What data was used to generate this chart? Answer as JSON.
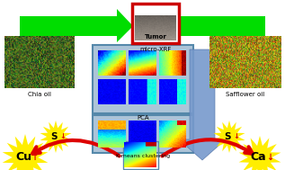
{
  "bg_color": "#ffffff",
  "tumor_box_color": "#cc0000",
  "tumor_label": "Tumor",
  "micro_xrf_label": "micro-XRF",
  "pca_label": "PCA",
  "kmeans_label": "K-means clustering",
  "chia_label": "Chia oil",
  "safflower_label": "Safflower oil",
  "cu_label": "Cu",
  "s_left_label": "S",
  "s_right_label": "S",
  "ca_label": "Ca",
  "green_arrow_color": "#00dd00",
  "blue_arrow_color": "#7799cc",
  "red_arrow_color": "#dd0000",
  "yellow_star_color": "#ffee00",
  "panel_bg": "#adc4d8",
  "panel_edge": "#5588aa"
}
